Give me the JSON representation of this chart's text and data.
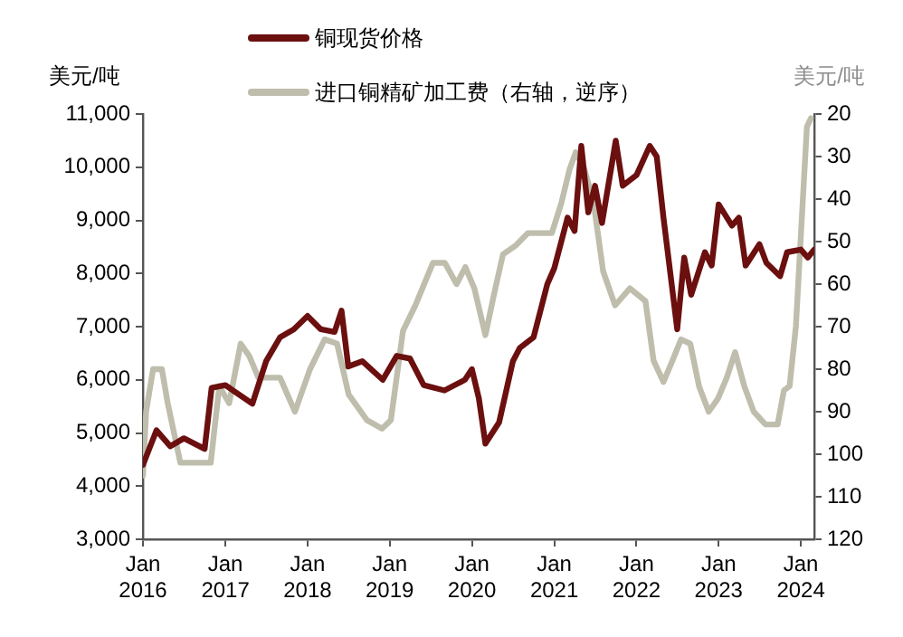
{
  "chart_data": {
    "type": "line",
    "ylabel": "美元/吨",
    "y2label": "美元/吨",
    "legend": "top",
    "grid": false,
    "marker": "none",
    "line_style": "solid",
    "xlim": [
      "2016-01",
      "2024-03"
    ],
    "xticks": [
      {
        "value": "2016-01",
        "label": "Jan 2016"
      },
      {
        "value": "2017-01",
        "label": "Jan 2017"
      },
      {
        "value": "2018-01",
        "label": "Jan 2018"
      },
      {
        "value": "2019-01",
        "label": "Jan 2019"
      },
      {
        "value": "2020-01",
        "label": "Jan 2020"
      },
      {
        "value": "2021-01",
        "label": "Jan 2021"
      },
      {
        "value": "2022-01",
        "label": "Jan 2022"
      },
      {
        "value": "2023-01",
        "label": "Jan 2023"
      },
      {
        "value": "2024-01",
        "label": "Jan 2024"
      }
    ],
    "ylim": [
      3000,
      11000
    ],
    "yticks": [
      {
        "value": 3000,
        "label": "3,000"
      },
      {
        "value": 4000,
        "label": "4,000"
      },
      {
        "value": 5000,
        "label": "5,000"
      },
      {
        "value": 6000,
        "label": "6,000"
      },
      {
        "value": 7000,
        "label": "7,000"
      },
      {
        "value": 8000,
        "label": "8,000"
      },
      {
        "value": 9000,
        "label": "9,000"
      },
      {
        "value": 10000,
        "label": "10,000"
      },
      {
        "value": 11000,
        "label": "11,000"
      }
    ],
    "y2lim": [
      120,
      20
    ],
    "y2ticks": [
      20,
      30,
      40,
      50,
      60,
      70,
      80,
      90,
      100,
      110,
      120
    ],
    "series": [
      {
        "name": "铜现货价格",
        "color": "#6b0f0f",
        "x": [
          "2016-01",
          "2016-03",
          "2016-05",
          "2016-07",
          "2016-10",
          "2016-11",
          "2017-01",
          "2017-05",
          "2017-07",
          "2017-09",
          "2017-11",
          "2018-01",
          "2018-03",
          "2018-05",
          "2018-06",
          "2018-07",
          "2018-09",
          "2018-12",
          "2019-02",
          "2019-04",
          "2019-06",
          "2019-09",
          "2019-12",
          "2020-01",
          "2020-02",
          "2020-03",
          "2020-05",
          "2020-07",
          "2020-08",
          "2020-10",
          "2020-12",
          "2021-01",
          "2021-03",
          "2021-04",
          "2021-05",
          "2021-06",
          "2021-07",
          "2021-08",
          "2021-10",
          "2021-11",
          "2022-01",
          "2022-03",
          "2022-04",
          "2022-05",
          "2022-07",
          "2022-08",
          "2022-09",
          "2022-11",
          "2022-12",
          "2023-01",
          "2023-03",
          "2023-04",
          "2023-05",
          "2023-07",
          "2023-08",
          "2023-10",
          "2023-11",
          "2024-01",
          "2024-02",
          "2024-03"
        ],
        "values": [
          4400,
          5050,
          4750,
          4900,
          4700,
          5850,
          5900,
          5550,
          6350,
          6800,
          6950,
          7200,
          6950,
          6900,
          7300,
          6250,
          6350,
          6000,
          6450,
          6400,
          5900,
          5800,
          6000,
          6200,
          5650,
          4800,
          5200,
          6350,
          6600,
          6800,
          7800,
          8100,
          9050,
          8800,
          10400,
          9150,
          9650,
          8950,
          10500,
          9650,
          9850,
          10400,
          10200,
          9050,
          6950,
          8300,
          7600,
          8400,
          8150,
          9300,
          8900,
          9050,
          8150,
          8550,
          8200,
          7950,
          8400,
          8450,
          8300,
          8450
        ]
      },
      {
        "name": "进口铜精矿加工费（右轴，逆序）",
        "color": "#bfbdac",
        "axis": "y2",
        "x": [
          "2016-01-01",
          "2016-01-15",
          "2016-02-15",
          "2016-03-25",
          "2016-04-20",
          "2016-06-15",
          "2016-10-28",
          "2016-12-05",
          "2017-01-18",
          "2017-03-10",
          "2017-04-18",
          "2017-05-28",
          "2017-09-01",
          "2017-11-06",
          "2018-01-12",
          "2018-03-18",
          "2018-05-12",
          "2018-07-03",
          "2018-09-22",
          "2018-11-28",
          "2019-01-06",
          "2019-03-01",
          "2019-04-25",
          "2019-07-12",
          "2019-09-03",
          "2019-10-25",
          "2019-12-03",
          "2020-01-12",
          "2020-03-01",
          "2020-04-10",
          "2020-05-18",
          "2020-07-12",
          "2020-09-06",
          "2020-12-21",
          "2021-02-01",
          "2021-03-10",
          "2021-04-06",
          "2021-05-15",
          "2021-06-25",
          "2021-08-06",
          "2021-09-28",
          "2021-12-03",
          "2022-02-10",
          "2022-03-18",
          "2022-05-01",
          "2022-06-10",
          "2022-07-18",
          "2022-08-28",
          "2022-10-06",
          "2022-11-18",
          "2022-12-28",
          "2023-02-06",
          "2023-03-15",
          "2023-04-25",
          "2023-06-06",
          "2023-07-28",
          "2023-09-20",
          "2023-10-18",
          "2023-11-12",
          "2023-12-10",
          "2024-01-06",
          "2024-01-28",
          "2024-02-15"
        ],
        "values": [
          105,
          90,
          80,
          80,
          88,
          102,
          102,
          84,
          88,
          74,
          77,
          82,
          82,
          90,
          80,
          73,
          74,
          86,
          92,
          94,
          92,
          71,
          65,
          55,
          55,
          60,
          56,
          61,
          72,
          62,
          53,
          51,
          48,
          48,
          41,
          33,
          29,
          33,
          41,
          57,
          65,
          61,
          64,
          78,
          83,
          78,
          73,
          74,
          84,
          90,
          87,
          82,
          76,
          84,
          90,
          93,
          93,
          85,
          84,
          70,
          44,
          23,
          21
        ]
      }
    ]
  }
}
